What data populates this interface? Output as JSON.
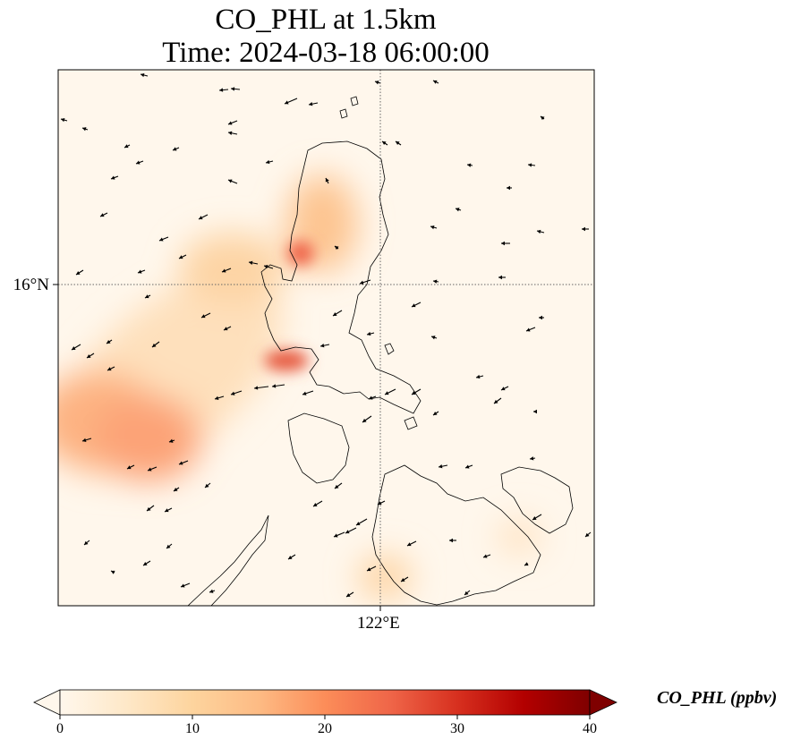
{
  "title_line1": "CO_PHL at 1.5km",
  "title_line2": "Time: 2024-03-18 06:00:00",
  "lat_ticks": [
    {
      "lat": 16,
      "label": "16°N"
    }
  ],
  "lon_ticks": [
    {
      "lon": 122,
      "label": "122°E"
    }
  ],
  "colorbar": {
    "label": "CO_PHL (ppbv)",
    "min": 0,
    "max": 40,
    "ticks": [
      "0",
      "10",
      "20",
      "30",
      "40"
    ],
    "extend": "both",
    "colormap": "OrRd",
    "colors": [
      "#fff7ec",
      "#fee8c8",
      "#fdd49e",
      "#fdbb84",
      "#fc8d59",
      "#ef6548",
      "#d7301f",
      "#b30000",
      "#7f0000"
    ]
  },
  "plumes": [
    {
      "name": "west-sea-plume-a",
      "value": 18
    },
    {
      "name": "west-sea-plume-b",
      "value": 19
    },
    {
      "name": "lingayen-gulf-plume",
      "value": 22
    },
    {
      "name": "manila-bay-plume",
      "value": 24
    },
    {
      "name": "central-luzon-plume",
      "value": 10
    },
    {
      "name": "southern-plume",
      "value": 8
    }
  ]
}
